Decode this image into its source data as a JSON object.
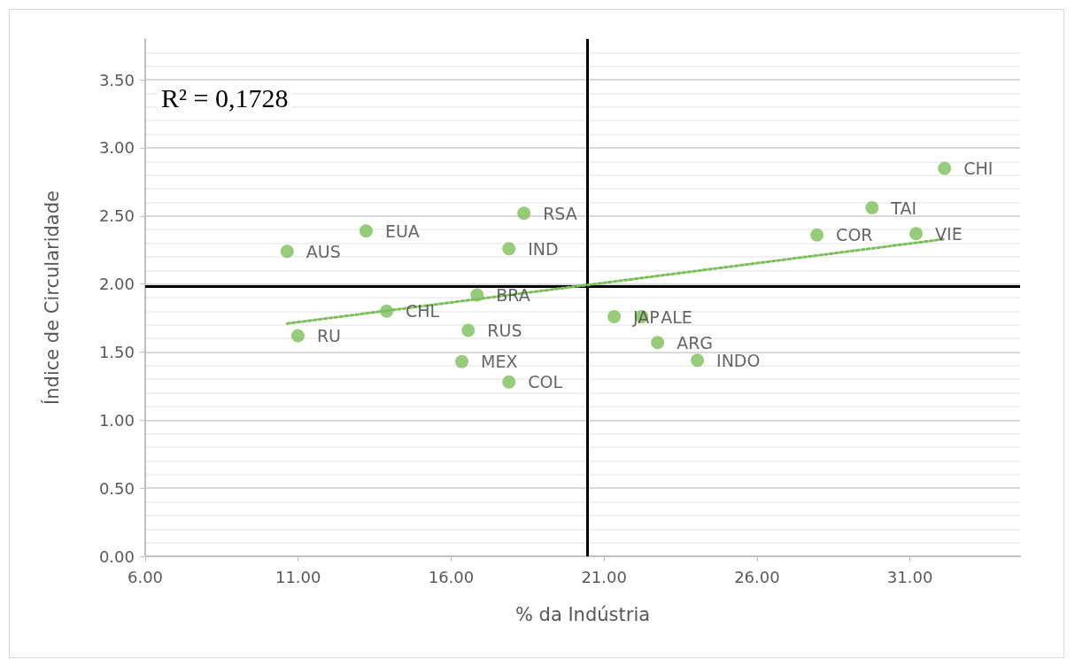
{
  "chart_data": {
    "type": "scatter",
    "xlabel": "% da Indústria",
    "ylabel": "Índice de Circularidade",
    "annotations": [
      "R² = 0,1728"
    ],
    "xlim": [
      6,
      34.6
    ],
    "ylim": [
      0,
      3.8
    ],
    "xticks": [
      {
        "value": 6,
        "label": "6.00"
      },
      {
        "value": 11,
        "label": "11.00"
      },
      {
        "value": 16,
        "label": "16.00"
      },
      {
        "value": 21,
        "label": "21.00"
      },
      {
        "value": 26,
        "label": "26.00"
      },
      {
        "value": 31,
        "label": "31.00"
      }
    ],
    "yticks": [
      {
        "value": 0,
        "label": "0.00"
      },
      {
        "value": 0.5,
        "label": "0.50"
      },
      {
        "value": 1,
        "label": "1.00"
      },
      {
        "value": 1.5,
        "label": "1.50"
      },
      {
        "value": 2,
        "label": "2.00"
      },
      {
        "value": 2.5,
        "label": "2.50"
      },
      {
        "value": 3,
        "label": "3.00"
      },
      {
        "value": 3.5,
        "label": "3.50"
      }
    ],
    "grid": "y",
    "legend": false,
    "marker": "circle",
    "series": [
      {
        "type": "scatter",
        "color": "#7dbf5a",
        "x": [
          10.64,
          13.22,
          18.38,
          17.89,
          16.85,
          13.89,
          10.99,
          16.56,
          16.35,
          17.89,
          21.33,
          22.23,
          22.75,
          24.05,
          27.96,
          29.76,
          31.2,
          32.13
        ],
        "values": [
          2.24,
          2.39,
          2.52,
          2.26,
          1.92,
          1.8,
          1.62,
          1.66,
          1.43,
          1.28,
          1.76,
          1.76,
          1.57,
          1.44,
          2.36,
          2.56,
          2.37,
          2.85
        ],
        "value_labels": [
          "AUS",
          "EUA",
          "RSA",
          "IND",
          "BRA",
          "CHL",
          "RU",
          "RUS",
          "MEX",
          "COL",
          "JAP",
          "ALE",
          "ARG",
          "INDO",
          "COR",
          "TAI",
          "VIE",
          "CHI"
        ]
      },
      {
        "type": "line",
        "color": "#7dbf5a",
        "line_style": "dotted",
        "marker": "none",
        "x": [
          10.64,
          32.13
        ],
        "values": [
          1.71,
          2.33
        ]
      }
    ],
    "ref_lines": [
      {
        "axis": "x",
        "value": 20.46,
        "color": "#000000"
      },
      {
        "axis": "y",
        "value": 1.98,
        "color": "#000000"
      }
    ]
  }
}
